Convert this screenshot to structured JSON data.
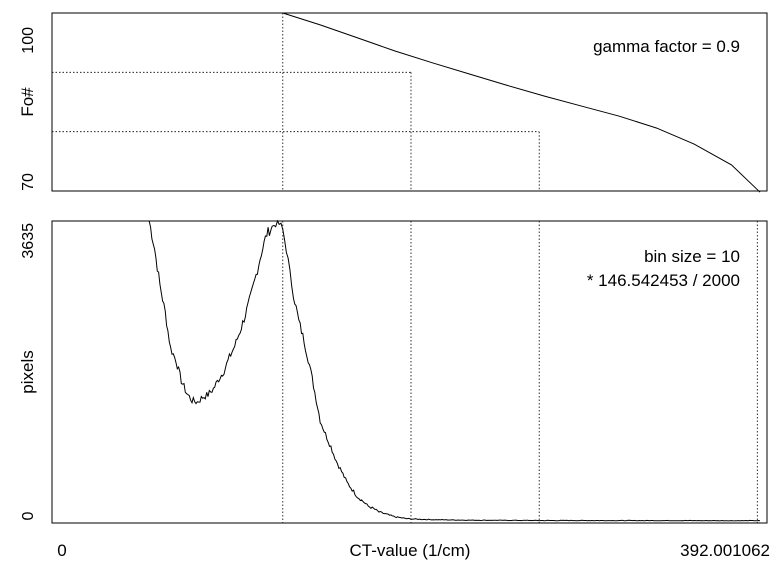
{
  "chart_data": [
    {
      "type": "line",
      "panel": "top",
      "ylabel": "Fo#",
      "ylim": [
        70,
        100
      ],
      "yticks": [
        "70",
        "100"
      ],
      "annotation": "gamma factor = 0.9",
      "guides_horizontal": [
        90,
        80
      ],
      "guides_vertical": [
        124,
        196,
        268
      ],
      "x": [
        124,
        145,
        166,
        187,
        208,
        229,
        250,
        271,
        292,
        313,
        334,
        355,
        376,
        392.001062
      ],
      "y": [
        100,
        98.0,
        95.8,
        93.6,
        91.6,
        89.7,
        87.8,
        86.0,
        84.3,
        82.6,
        80.6,
        77.9,
        74.4,
        69.8
      ]
    },
    {
      "type": "line",
      "panel": "bottom",
      "ylabel": "pixels",
      "ylim": [
        0,
        3635
      ],
      "yticks": [
        "0",
        "3635"
      ],
      "annotation_lines": [
        "bin size = 10",
        "* 146.542453 / 2000"
      ],
      "guides_vertical": [
        124,
        196,
        268,
        390.5
      ],
      "x": [
        49,
        52,
        55,
        58,
        61,
        64,
        67,
        70,
        73,
        76,
        79,
        82,
        85,
        88,
        91,
        94,
        97,
        100,
        103,
        106,
        109,
        112,
        115,
        118,
        120,
        122,
        124,
        126,
        128,
        130,
        133,
        136,
        139,
        142,
        145,
        148,
        151,
        154,
        157,
        160,
        163,
        166,
        169,
        172,
        175,
        178,
        181,
        184,
        187,
        190,
        193,
        196,
        205,
        215,
        230,
        250,
        270,
        290,
        310,
        330,
        350,
        370,
        392
      ],
      "y": [
        3635,
        3300,
        2860,
        2520,
        2090,
        1950,
        1700,
        1550,
        1460,
        1440,
        1500,
        1530,
        1600,
        1720,
        1820,
        1980,
        2120,
        2300,
        2500,
        2720,
        2980,
        3250,
        3480,
        3560,
        3620,
        3600,
        3520,
        3300,
        3000,
        2750,
        2420,
        2180,
        1890,
        1560,
        1220,
        1050,
        900,
        730,
        600,
        470,
        380,
        290,
        240,
        180,
        150,
        110,
        90,
        70,
        50,
        40,
        30,
        25,
        18,
        14,
        10,
        8,
        6,
        6,
        5,
        5,
        5,
        4,
        4
      ]
    }
  ],
  "x_axis": {
    "xlabel": "CT-value (1/cm)",
    "xlim": [
      0,
      392.001062
    ],
    "xtick_left": "0",
    "xtick_right": "392.001062"
  }
}
